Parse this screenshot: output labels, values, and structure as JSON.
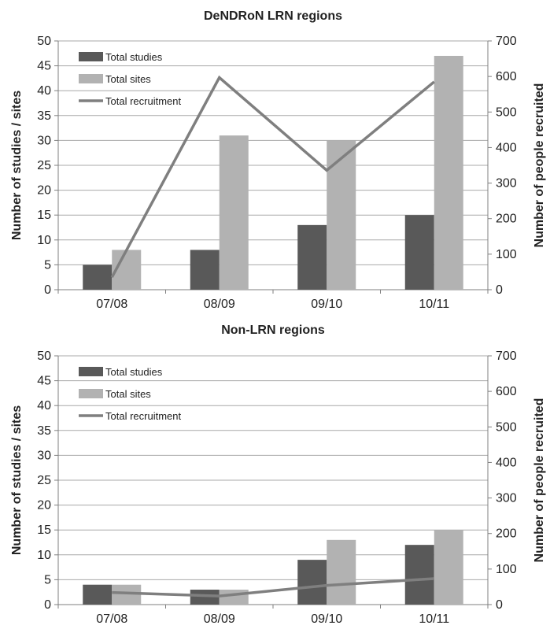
{
  "chart_data": [
    {
      "type": "bar",
      "title": "DeNDRoN LRN regions",
      "categories": [
        "07/08",
        "08/09",
        "09/10",
        "10/11"
      ],
      "ylabel": "Number of studies / sites",
      "y2label": "Number of people recruited",
      "ylim": [
        0,
        50
      ],
      "y2lim": [
        0,
        700
      ],
      "yticks": [
        "0",
        "5",
        "10",
        "15",
        "20",
        "25",
        "30",
        "35",
        "40",
        "45",
        "50"
      ],
      "y2ticks": [
        "0",
        "100",
        "200",
        "300",
        "400",
        "500",
        "600",
        "700"
      ],
      "grid": true,
      "legend_position": "top-left",
      "series": [
        {
          "name": "Total studies",
          "type": "bar",
          "axis": "left",
          "color": "#595959",
          "values": [
            5,
            8,
            13,
            15
          ]
        },
        {
          "name": "Total sites",
          "type": "bar",
          "axis": "left",
          "color": "#b2b2b2",
          "values": [
            8,
            31,
            30,
            47
          ]
        },
        {
          "name": "Total recruitment",
          "type": "line",
          "axis": "right",
          "color": "#7f7f7f",
          "values": [
            35,
            597,
            336,
            585
          ]
        }
      ]
    },
    {
      "type": "bar",
      "title": "Non-LRN regions",
      "categories": [
        "07/08",
        "08/09",
        "09/10",
        "10/11"
      ],
      "ylabel": "Number of studies / sites",
      "y2label": "Number of people recruited",
      "ylim": [
        0,
        50
      ],
      "y2lim": [
        0,
        700
      ],
      "yticks": [
        "0",
        "5",
        "10",
        "15",
        "20",
        "25",
        "30",
        "35",
        "40",
        "45",
        "50"
      ],
      "y2ticks": [
        "0",
        "100",
        "200",
        "300",
        "400",
        "500",
        "600",
        "700"
      ],
      "grid": true,
      "legend_position": "top-left",
      "series": [
        {
          "name": "Total studies",
          "type": "bar",
          "axis": "left",
          "color": "#595959",
          "values": [
            4,
            3,
            9,
            12
          ]
        },
        {
          "name": "Total sites",
          "type": "bar",
          "axis": "left",
          "color": "#b2b2b2",
          "values": [
            4,
            3,
            13,
            15
          ]
        },
        {
          "name": "Total recruitment",
          "type": "line",
          "axis": "right",
          "color": "#7f7f7f",
          "values": [
            34,
            24,
            54,
            73
          ]
        }
      ]
    }
  ]
}
